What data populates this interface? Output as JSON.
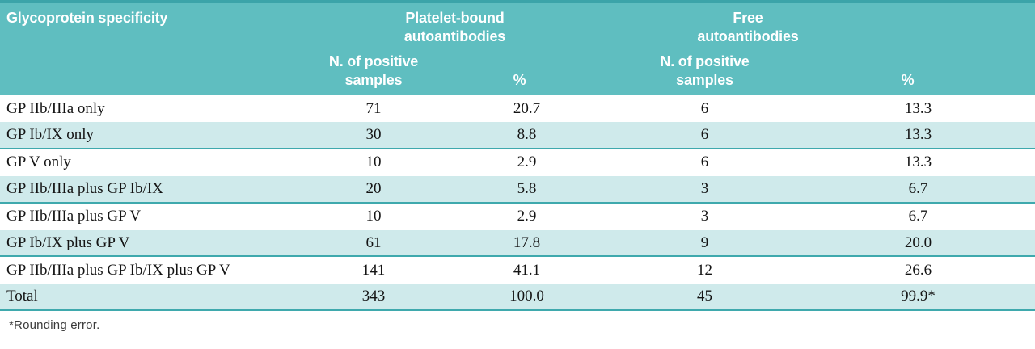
{
  "header": {
    "specificity": "Glycoprotein specificity",
    "platelet_group": {
      "line1": "Platelet-bound",
      "line2": "autoantibodies"
    },
    "free_group": {
      "line1": "Free",
      "line2": "autoantibodies"
    },
    "platelet_n": {
      "line1": "N. of positive",
      "line2": "samples"
    },
    "free_n": {
      "line1": "N. of positive",
      "line2": "samples"
    },
    "platelet_pct": "%",
    "free_pct": "%"
  },
  "rows": [
    {
      "label": "GP IIb/IIIa only",
      "n_platelet": "71",
      "pct_platelet": "20.7",
      "n_free": "6",
      "pct_free": "13.3"
    },
    {
      "label": "GP Ib/IX only",
      "n_platelet": "30",
      "pct_platelet": "8.8",
      "n_free": "6",
      "pct_free": "13.3"
    },
    {
      "label": "GP V only",
      "n_platelet": "10",
      "pct_platelet": "2.9",
      "n_free": "6",
      "pct_free": "13.3"
    },
    {
      "label": "GP IIb/IIIa plus GP Ib/IX",
      "n_platelet": "20",
      "pct_platelet": "5.8",
      "n_free": "3",
      "pct_free": "6.7"
    },
    {
      "label": "GP IIb/IIIa plus GP V",
      "n_platelet": "10",
      "pct_platelet": "2.9",
      "n_free": "3",
      "pct_free": "6.7"
    },
    {
      "label": "GP Ib/IX plus GP V",
      "n_platelet": "61",
      "pct_platelet": "17.8",
      "n_free": "9",
      "pct_free": "20.0"
    },
    {
      "label": "GP IIb/IIIa plus GP Ib/IX plus GP V",
      "n_platelet": "141",
      "pct_platelet": "41.1",
      "n_free": "12",
      "pct_free": "26.6"
    },
    {
      "label": "Total",
      "n_platelet": "343",
      "pct_platelet": "100.0",
      "n_free": "45",
      "pct_free": "99.9*"
    }
  ],
  "footnote": "*Rounding error.",
  "colors": {
    "header_background": "#5fbec0",
    "header_top_strip": "#3ba4a9",
    "shaded_row": "#cfeaeb",
    "row_border": "#3fa9ad",
    "header_text": "#ffffff",
    "body_text": "#141414"
  }
}
